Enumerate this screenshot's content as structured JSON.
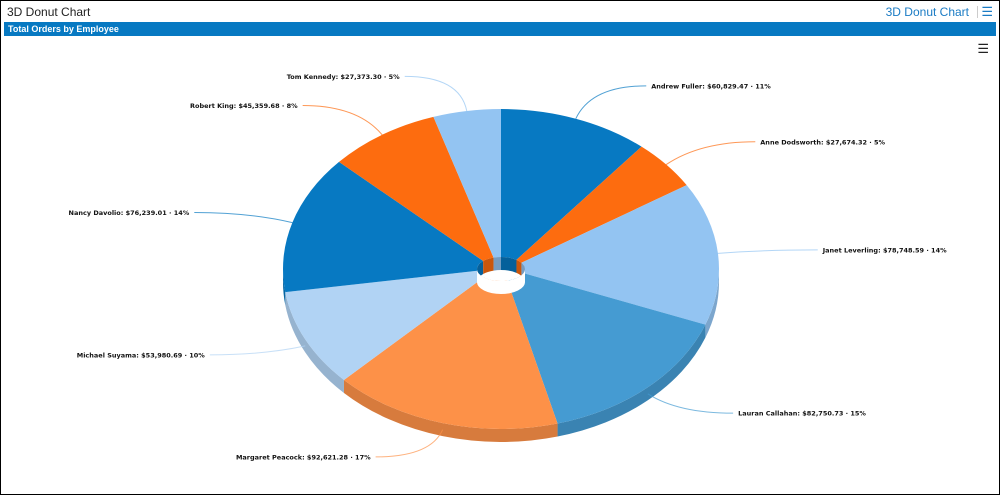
{
  "header": {
    "title": "3D Donut Chart",
    "link": "3D Donut Chart",
    "export_icon": "export-list-icon"
  },
  "panel": {
    "title": "Total Orders by Employee",
    "menu_icon": "hamburger-menu-icon"
  },
  "chart_data": {
    "type": "pie",
    "variant": "3d-donut",
    "title": "Total Orders by Employee",
    "slices": [
      {
        "name": "Andrew Fuller",
        "value": 60829.47,
        "label": "$60,829.47",
        "percent": "11%",
        "color": "#0779c2"
      },
      {
        "name": "Anne Dodsworth",
        "value": 27674.32,
        "label": "$27,674.32",
        "percent": "5%",
        "color": "#fd6c0f"
      },
      {
        "name": "Janet Leverling",
        "value": 78748.59,
        "label": "$78,748.59",
        "percent": "14%",
        "color": "#93c4f2"
      },
      {
        "name": "Lauran Callahan",
        "value": 82750.73,
        "label": "$82,750.73",
        "percent": "15%",
        "color": "#459bd2"
      },
      {
        "name": "Margaret Peacock",
        "value": 92621.28,
        "label": "$92,621.28",
        "percent": "17%",
        "color": "#fd9148"
      },
      {
        "name": "Michael Suyama",
        "value": 53980.69,
        "label": "$53,980.69",
        "percent": "10%",
        "color": "#b1d3f4"
      },
      {
        "name": "Nancy Davolio",
        "value": 76239.01,
        "label": "$76,239.01",
        "percent": "14%",
        "color": "#0779c2"
      },
      {
        "name": "Robert King",
        "value": 45359.68,
        "label": "$45,359.68",
        "percent": "8%",
        "color": "#fd6c0f"
      },
      {
        "name": "Tom Kennedy",
        "value": 27373.3,
        "label": "$27,373.30",
        "percent": "5%",
        "color": "#93c4f2"
      }
    ]
  }
}
